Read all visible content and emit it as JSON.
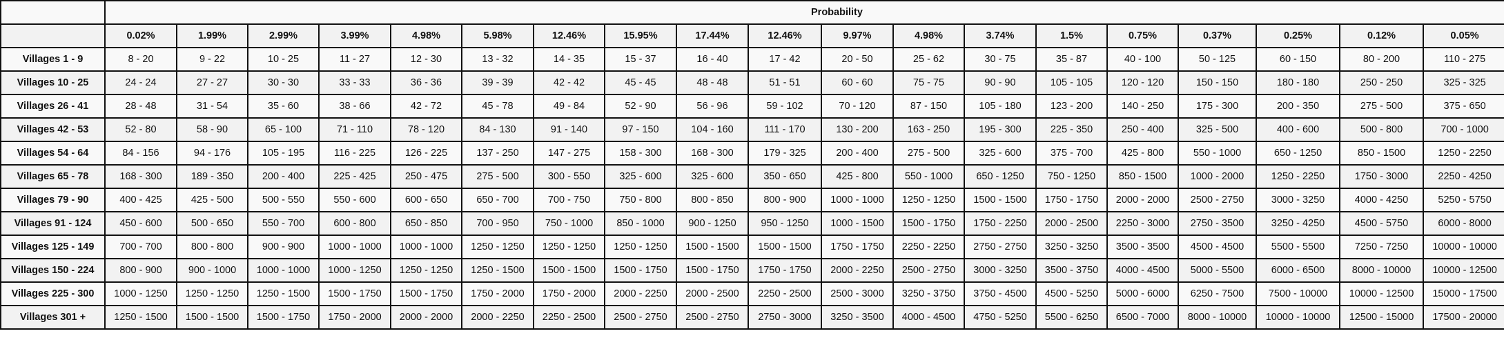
{
  "table": {
    "group_header": "Probability",
    "corner_top": "",
    "corner_sub": "",
    "probabilities": [
      "0.02%",
      "1.99%",
      "2.99%",
      "3.99%",
      "4.98%",
      "5.98%",
      "12.46%",
      "15.95%",
      "17.44%",
      "12.46%",
      "9.97%",
      "4.98%",
      "3.74%",
      "1.5%",
      "0.75%",
      "0.37%",
      "0.25%",
      "0.12%",
      "0.05%"
    ],
    "rows": [
      {
        "label": "Villages 1 - 9",
        "values": [
          "8 - 20",
          "9 - 22",
          "10 - 25",
          "11 - 27",
          "12 - 30",
          "13 - 32",
          "14 - 35",
          "15 - 37",
          "16 - 40",
          "17 - 42",
          "20 - 50",
          "25 - 62",
          "30 - 75",
          "35 - 87",
          "40 - 100",
          "50 - 125",
          "60 - 150",
          "80 - 200",
          "110 - 275"
        ]
      },
      {
        "label": "Villages 10 - 25",
        "values": [
          "24 - 24",
          "27 - 27",
          "30 - 30",
          "33 - 33",
          "36 - 36",
          "39 - 39",
          "42 - 42",
          "45 - 45",
          "48 - 48",
          "51 - 51",
          "60 - 60",
          "75 - 75",
          "90 - 90",
          "105 - 105",
          "120 - 120",
          "150 - 150",
          "180 - 180",
          "250 - 250",
          "325 - 325"
        ]
      },
      {
        "label": "Villages 26 - 41",
        "values": [
          "28 - 48",
          "31 - 54",
          "35 - 60",
          "38 - 66",
          "42 - 72",
          "45 - 78",
          "49 - 84",
          "52 - 90",
          "56 - 96",
          "59 - 102",
          "70 - 120",
          "87 - 150",
          "105 - 180",
          "123 - 200",
          "140 - 250",
          "175 - 300",
          "200 - 350",
          "275 - 500",
          "375 - 650"
        ]
      },
      {
        "label": "Villages 42 - 53",
        "values": [
          "52 - 80",
          "58 - 90",
          "65 - 100",
          "71 - 110",
          "78 - 120",
          "84 - 130",
          "91 - 140",
          "97 - 150",
          "104 - 160",
          "111 - 170",
          "130 - 200",
          "163 - 250",
          "195 - 300",
          "225 - 350",
          "250 - 400",
          "325 - 500",
          "400 - 600",
          "500 - 800",
          "700 - 1000"
        ]
      },
      {
        "label": "Villages 54 - 64",
        "values": [
          "84 - 156",
          "94 - 176",
          "105 - 195",
          "116 - 225",
          "126 - 225",
          "137 - 250",
          "147 - 275",
          "158 - 300",
          "168 - 300",
          "179 - 325",
          "200 - 400",
          "275 - 500",
          "325 - 600",
          "375 - 700",
          "425 - 800",
          "550 - 1000",
          "650 - 1250",
          "850 - 1500",
          "1250 - 2250"
        ]
      },
      {
        "label": "Villages 65 - 78",
        "values": [
          "168 - 300",
          "189 - 350",
          "200 - 400",
          "225 - 425",
          "250 - 475",
          "275 - 500",
          "300 - 550",
          "325 - 600",
          "325 - 600",
          "350 - 650",
          "425 - 800",
          "550 - 1000",
          "650 - 1250",
          "750 - 1250",
          "850 - 1500",
          "1000 - 2000",
          "1250 - 2250",
          "1750 - 3000",
          "2250 - 4250"
        ]
      },
      {
        "label": "Villages 79 - 90",
        "values": [
          "400 - 425",
          "425 - 500",
          "500 - 550",
          "550 - 600",
          "600 - 650",
          "650 - 700",
          "700 - 750",
          "750 - 800",
          "800 - 850",
          "800 - 900",
          "1000 - 1000",
          "1250 - 1250",
          "1500 - 1500",
          "1750 - 1750",
          "2000 - 2000",
          "2500 - 2750",
          "3000 - 3250",
          "4000 - 4250",
          "5250 - 5750"
        ]
      },
      {
        "label": "Villages 91 - 124",
        "values": [
          "450 - 600",
          "500 - 650",
          "550 - 700",
          "600 - 800",
          "650 - 850",
          "700 - 950",
          "750 - 1000",
          "850 - 1000",
          "900 - 1250",
          "950 - 1250",
          "1000 - 1500",
          "1500 - 1750",
          "1750 - 2250",
          "2000 - 2500",
          "2250 - 3000",
          "2750 - 3500",
          "3250 - 4250",
          "4500 - 5750",
          "6000 - 8000"
        ]
      },
      {
        "label": "Villages 125 - 149",
        "values": [
          "700 - 700",
          "800 - 800",
          "900 - 900",
          "1000 - 1000",
          "1000 - 1000",
          "1250 - 1250",
          "1250 - 1250",
          "1250 - 1250",
          "1500 - 1500",
          "1500 - 1500",
          "1750 - 1750",
          "2250 - 2250",
          "2750 - 2750",
          "3250 - 3250",
          "3500 - 3500",
          "4500 - 4500",
          "5500 - 5500",
          "7250 - 7250",
          "10000 - 10000"
        ]
      },
      {
        "label": "Villages 150 - 224",
        "values": [
          "800 - 900",
          "900 - 1000",
          "1000 - 1000",
          "1000 - 1250",
          "1250 - 1250",
          "1250 - 1500",
          "1500 - 1500",
          "1500 - 1750",
          "1500 - 1750",
          "1750 - 1750",
          "2000 - 2250",
          "2500 - 2750",
          "3000 - 3250",
          "3500 - 3750",
          "4000 - 4500",
          "5000 - 5500",
          "6000 - 6500",
          "8000 - 10000",
          "10000 - 12500"
        ]
      },
      {
        "label": "Villages 225 - 300",
        "values": [
          "1000 - 1250",
          "1250 - 1250",
          "1250 - 1500",
          "1500 - 1750",
          "1500 - 1750",
          "1750 - 2000",
          "1750 - 2000",
          "2000 - 2250",
          "2000 - 2500",
          "2250 - 2500",
          "2500 - 3000",
          "3250 - 3750",
          "3750 - 4500",
          "4500 - 5250",
          "5000 - 6000",
          "6250 - 7500",
          "7500 - 10000",
          "10000 - 12500",
          "15000 - 17500"
        ]
      },
      {
        "label": "Villages 301 +",
        "values": [
          "1250 - 1500",
          "1500 - 1500",
          "1500 - 1750",
          "1750 - 2000",
          "2000 - 2000",
          "2000 - 2250",
          "2250 - 2500",
          "2500 - 2750",
          "2500 - 2750",
          "2750 - 3000",
          "3250 - 3500",
          "4000 - 4500",
          "4750 - 5250",
          "5500 - 6250",
          "6500 - 7000",
          "8000 - 10000",
          "10000 - 10000",
          "12500 - 15000",
          "17500 - 20000"
        ]
      }
    ]
  }
}
